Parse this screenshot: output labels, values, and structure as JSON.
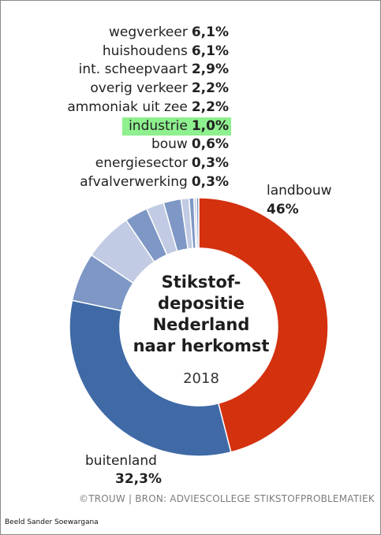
{
  "chart_data": {
    "type": "pie",
    "variant": "donut",
    "title_lines": [
      "Stikstof-",
      "depositie",
      "Nederland",
      "naar herkomst"
    ],
    "year": "2018",
    "slices": [
      {
        "label": "landbouw",
        "value": 46,
        "display": "46%",
        "color": "#d4310f"
      },
      {
        "label": "buitenland",
        "value": 32.3,
        "display": "32,3%",
        "color": "#3f6aa6"
      },
      {
        "label": "wegverkeer",
        "value": 6.1,
        "display": "6,1%",
        "color": "#7e97c5"
      },
      {
        "label": "huishoudens",
        "value": 6.1,
        "display": "6,1%",
        "color": "#c1cbe3"
      },
      {
        "label": "int. scheepvaart",
        "value": 2.9,
        "display": "2,9%",
        "color": "#7e97c5"
      },
      {
        "label": "overig verkeer",
        "value": 2.2,
        "display": "2,2%",
        "color": "#c1cbe3"
      },
      {
        "label": "ammoniak uit zee",
        "value": 2.2,
        "display": "2,2%",
        "color": "#7e97c5"
      },
      {
        "label": "industrie",
        "value": 1.0,
        "display": "1,0%",
        "color": "#c1cbe3",
        "highlight": "#8ef08e"
      },
      {
        "label": "bouw",
        "value": 0.6,
        "display": "0,6%",
        "color": "#7e97c5"
      },
      {
        "label": "energiesector",
        "value": 0.3,
        "display": "0,3%",
        "color": "#c1cbe3"
      },
      {
        "label": "afvalverwerking",
        "value": 0.3,
        "display": "0,3%",
        "color": "#7e97c5"
      }
    ]
  },
  "source": "©TROUW | BRON: ADVIESCOLLEGE STIKSTOFPROBLEMATIEK",
  "credit": "Beeld Sander Soewargana"
}
